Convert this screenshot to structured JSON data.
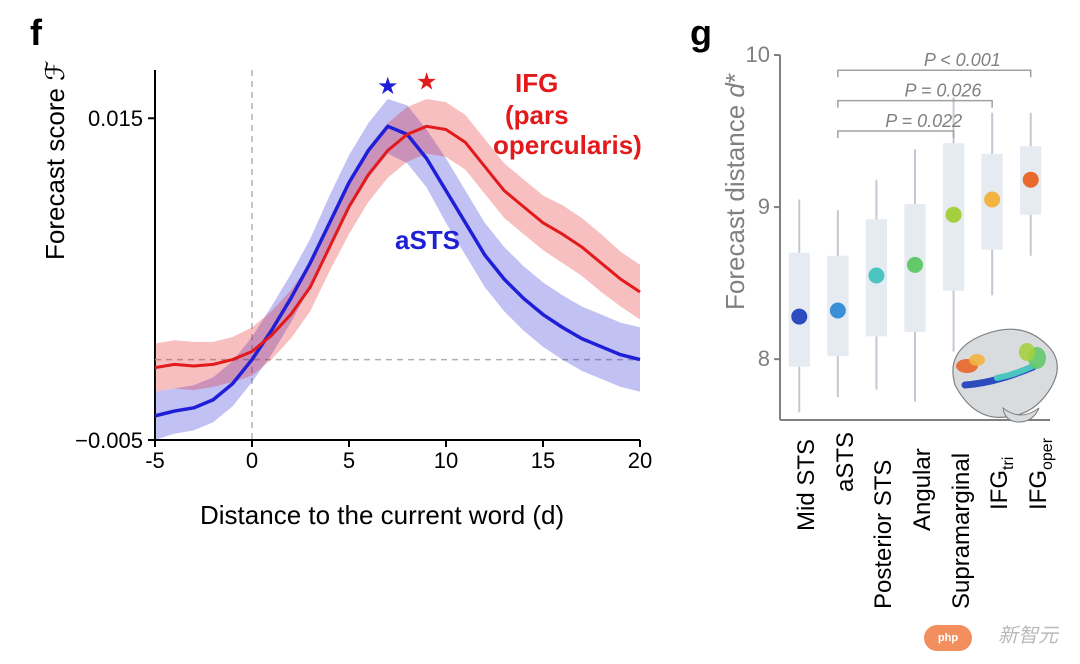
{
  "panel_f": {
    "label": "f",
    "plot": {
      "type": "line",
      "xlim": [
        -5,
        20
      ],
      "ylim": [
        -0.005,
        0.018
      ],
      "xticks": [
        -5,
        0,
        5,
        10,
        15,
        20
      ],
      "yticks": [
        -0.005,
        0.015
      ],
      "xlabel": "Distance to the current word (d)",
      "ylabel": "Forecast score ℱ",
      "hline_y": 0.0,
      "vline_x": 0,
      "grid_color": "#b0b0b0",
      "series": [
        {
          "name": "IFG (pars opercularis)",
          "label_lines": [
            "IFG",
            "(pars",
            "opercularis)"
          ],
          "color": "#e31a1c",
          "fill_opacity": 0.28,
          "line_width": 3,
          "x": [
            -5,
            -4,
            -3,
            -2,
            -1,
            0,
            1,
            2,
            3,
            4,
            5,
            6,
            7,
            8,
            9,
            10,
            11,
            12,
            13,
            14,
            15,
            16,
            17,
            18,
            19,
            20
          ],
          "y": [
            -0.0005,
            -0.0003,
            -0.0004,
            -0.0003,
            0.0,
            0.0005,
            0.0015,
            0.0028,
            0.0045,
            0.007,
            0.0095,
            0.0115,
            0.013,
            0.014,
            0.0145,
            0.0143,
            0.0135,
            0.012,
            0.0105,
            0.0095,
            0.0085,
            0.0078,
            0.007,
            0.006,
            0.005,
            0.0042
          ],
          "y_lo": [
            -0.002,
            -0.0018,
            -0.0019,
            -0.0017,
            -0.0014,
            -0.001,
            0.0,
            0.0013,
            0.003,
            0.0055,
            0.0078,
            0.0098,
            0.0113,
            0.0123,
            0.0128,
            0.0126,
            0.0118,
            0.0103,
            0.0088,
            0.0078,
            0.0068,
            0.006,
            0.0052,
            0.0042,
            0.0033,
            0.0025
          ],
          "y_hi": [
            0.001,
            0.0012,
            0.0011,
            0.0011,
            0.0014,
            0.002,
            0.003,
            0.0043,
            0.006,
            0.0085,
            0.0112,
            0.0132,
            0.0147,
            0.0157,
            0.0162,
            0.016,
            0.0152,
            0.0137,
            0.0122,
            0.0112,
            0.0102,
            0.0096,
            0.0088,
            0.0078,
            0.0067,
            0.0059
          ],
          "star_x": 9,
          "star_y": 0.0168
        },
        {
          "name": "aSTS",
          "label_lines": [
            "aSTS"
          ],
          "color": "#1f1fd8",
          "fill_opacity": 0.28,
          "line_width": 3.5,
          "x": [
            -5,
            -4,
            -3,
            -2,
            -1,
            0,
            1,
            2,
            3,
            4,
            5,
            6,
            7,
            8,
            9,
            10,
            11,
            12,
            13,
            14,
            15,
            16,
            17,
            18,
            19,
            20
          ],
          "y": [
            -0.0035,
            -0.0032,
            -0.003,
            -0.0025,
            -0.0015,
            0.0,
            0.0018,
            0.0038,
            0.006,
            0.0085,
            0.011,
            0.013,
            0.0145,
            0.014,
            0.0125,
            0.0105,
            0.0085,
            0.0065,
            0.005,
            0.0038,
            0.0028,
            0.002,
            0.0013,
            0.0008,
            0.0003,
            0.0
          ],
          "y_lo": [
            -0.005,
            -0.0046,
            -0.0044,
            -0.0039,
            -0.0029,
            -0.0014,
            0.0003,
            0.0023,
            0.0045,
            0.0068,
            0.0093,
            0.0113,
            0.0128,
            0.0122,
            0.0107,
            0.0085,
            0.0065,
            0.0045,
            0.003,
            0.0018,
            0.0008,
            0.0,
            -0.0007,
            -0.0012,
            -0.0017,
            -0.002
          ],
          "y_hi": [
            -0.002,
            -0.0018,
            -0.0016,
            -0.0011,
            -0.0001,
            0.0014,
            0.0033,
            0.0053,
            0.0075,
            0.0102,
            0.0127,
            0.0147,
            0.0162,
            0.0158,
            0.0143,
            0.0125,
            0.0105,
            0.0085,
            0.007,
            0.0058,
            0.0048,
            0.004,
            0.0033,
            0.0028,
            0.0023,
            0.002
          ],
          "star_x": 7,
          "star_y": 0.0165
        }
      ]
    }
  },
  "panel_g": {
    "label": "g",
    "plot": {
      "type": "box-point",
      "ylim": [
        7.6,
        10
      ],
      "yticks": [
        8,
        9,
        10
      ],
      "ylabel": "Forecast distance d*",
      "ylabel_color": "#808080",
      "tick_color": "#808080",
      "box_fill": "#e6ebf2",
      "box_width": 0.55,
      "whisker_color": "#c3c9d2",
      "categories": [
        "Mid STS",
        "aSTS",
        "Posterior STS",
        "Angular",
        "Supramarginal",
        "IFGₜᵣᵢ",
        "IFGₒₚₑᵣ"
      ],
      "point_radius": 8,
      "points": [
        {
          "y": 8.28,
          "color": "#2b4bbf",
          "box_lo": 7.95,
          "box_hi": 8.7,
          "w_lo": 7.65,
          "w_hi": 9.05
        },
        {
          "y": 8.32,
          "color": "#3a8fd8",
          "box_lo": 8.02,
          "box_hi": 8.68,
          "w_lo": 7.75,
          "w_hi": 8.98
        },
        {
          "y": 8.55,
          "color": "#4bc5c0",
          "box_lo": 8.15,
          "box_hi": 8.92,
          "w_lo": 7.8,
          "w_hi": 9.18
        },
        {
          "y": 8.62,
          "color": "#63c96a",
          "box_lo": 8.18,
          "box_hi": 9.02,
          "w_lo": 7.72,
          "w_hi": 9.38
        },
        {
          "y": 8.95,
          "color": "#a4cf3f",
          "box_lo": 8.45,
          "box_hi": 9.42,
          "w_lo": 8.05,
          "w_hi": 9.72
        },
        {
          "y": 9.05,
          "color": "#f2b340",
          "box_lo": 8.72,
          "box_hi": 9.35,
          "w_lo": 8.42,
          "w_hi": 9.62
        },
        {
          "y": 9.18,
          "color": "#e86a2e",
          "box_lo": 8.95,
          "box_hi": 9.4,
          "w_lo": 8.68,
          "w_hi": 9.62
        }
      ],
      "sig": [
        {
          "from": 1,
          "to": 4,
          "label": "P = 0.022",
          "y": 9.5
        },
        {
          "from": 1,
          "to": 5,
          "label": "P = 0.026",
          "y": 9.7
        },
        {
          "from": 1,
          "to": 6,
          "label": "P < 0.001",
          "y": 9.9
        }
      ],
      "inset": {
        "body_color": "#d9dcdf",
        "outline": "#808080",
        "regions": [
          {
            "color": "#2b4bbf"
          },
          {
            "color": "#3a8fd8"
          },
          {
            "color": "#4bc5c0"
          },
          {
            "color": "#63c96a"
          },
          {
            "color": "#a4cf3f"
          },
          {
            "color": "#f2b340"
          },
          {
            "color": "#e86a2e"
          }
        ]
      }
    }
  },
  "watermark": "新智元"
}
